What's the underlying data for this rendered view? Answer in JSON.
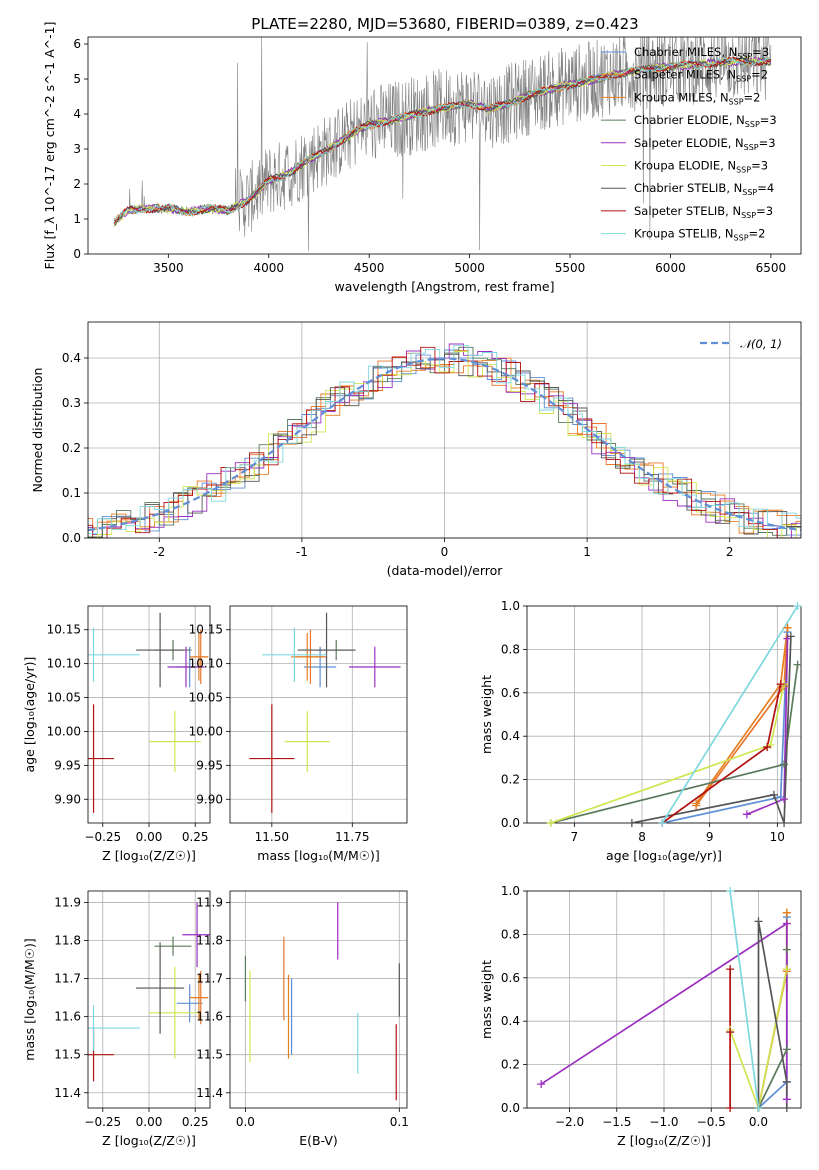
{
  "title": "PLATE=2280, MJD=53680, FIBERID=0389, z=0.423",
  "series": [
    {
      "name": "Chabrier MILES, N$_{SSP}$=3",
      "label": "Chabrier MILES, N",
      "sub": "SSP",
      "n": "=3",
      "color": "#5f8fd6"
    },
    {
      "name": "Salpeter MILES",
      "label": "Salpeter MILES, N",
      "sub": "SSP",
      "n": "=2",
      "color": "#e9772b"
    },
    {
      "name": "Kroupa MILES",
      "label": "Kroupa MILES, N",
      "sub": "SSP",
      "n": "=2",
      "color": "#e67e22"
    },
    {
      "name": "Chabrier ELODIE",
      "label": "Chabrier ELODIE, N",
      "sub": "SSP",
      "n": "=3",
      "color": "#5a7a5a"
    },
    {
      "name": "Salpeter ELODIE",
      "label": "Salpeter ELODIE, N",
      "sub": "SSP",
      "n": "=3",
      "color": "#9b30c0"
    },
    {
      "name": "Kroupa ELODIE",
      "label": "Kroupa ELODIE, N",
      "sub": "SSP",
      "n": "=3",
      "color": "#cfe650"
    },
    {
      "name": "Chabrier STELIB",
      "label": "Chabrier STELIB, N",
      "sub": "SSP",
      "n": "=4",
      "color": "#555555"
    },
    {
      "name": "Salpeter STELIB",
      "label": "Salpeter STELIB, N",
      "sub": "SSP",
      "n": "=3",
      "color": "#b01010"
    },
    {
      "name": "Kroupa STELIB",
      "label": "Kroupa STELIB, N",
      "sub": "SSP",
      "n": "=2",
      "color": "#7fd8e0"
    }
  ],
  "chart_data": [
    {
      "type": "line",
      "id": "spectrum",
      "xlabel": "wavelength [Angstrom, rest frame]",
      "ylabel": "Flux [f_λ 10^-17 erg cm^-2 s^-1 A^-1]",
      "xlim": [
        3100,
        6650
      ],
      "ylim": [
        0,
        6.2
      ],
      "xticks": [
        3500,
        4000,
        4500,
        5000,
        5500,
        6000,
        6500
      ],
      "yticks": [
        0,
        1,
        2,
        3,
        4,
        5,
        6
      ],
      "model_x": [
        3230,
        3300,
        3400,
        3500,
        3600,
        3700,
        3800,
        3900,
        4000,
        4100,
        4200,
        4300,
        4400,
        4500,
        4600,
        4700,
        4800,
        4900,
        5000,
        5100,
        5200,
        5300,
        5400,
        5500,
        5600,
        5700,
        5800,
        5900,
        6000,
        6100,
        6200,
        6300,
        6400,
        6500
      ],
      "model_y": [
        0.9,
        1.25,
        1.3,
        1.3,
        1.2,
        1.3,
        1.25,
        1.55,
        2.1,
        2.3,
        2.7,
        3.0,
        3.4,
        3.7,
        3.8,
        3.95,
        4.1,
        4.2,
        4.3,
        4.15,
        4.3,
        4.55,
        4.7,
        4.85,
        4.95,
        5.1,
        5.2,
        5.3,
        5.35,
        5.4,
        5.45,
        5.5,
        5.5,
        5.5
      ],
      "legend": "top-right"
    },
    {
      "type": "bar",
      "id": "residuals",
      "xlabel": "(data-model)/error",
      "ylabel": "Normed distribution",
      "xlim": [
        -2.5,
        2.5
      ],
      "ylim": [
        0,
        0.48
      ],
      "xticks": [
        -2,
        -1,
        0,
        1,
        2
      ],
      "yticks": [
        0.0,
        0.1,
        0.2,
        0.3,
        0.4
      ],
      "normal_label": "𝒩(0, 1)",
      "legend": "top-right"
    },
    {
      "type": "scatter",
      "id": "age-vs-Z",
      "xlabel": "Z [log₁₀(Z/Z☉)]",
      "ylabel": "age  [log₁₀(age/yr)]",
      "xlim": [
        -0.33,
        0.33
      ],
      "ylim": [
        9.865,
        10.185
      ],
      "xticks": [
        -0.25,
        0.0,
        0.25
      ],
      "xticklabels": [
        "−0.25",
        "0.00",
        "0.25"
      ],
      "yticks": [
        9.9,
        9.95,
        10.0,
        10.05,
        10.1,
        10.15
      ],
      "yticklabels": [
        "9.90",
        "9.95",
        "10.00",
        "10.05",
        "10.10",
        "10.15"
      ],
      "points": [
        {
          "s": 0,
          "x": 0.22,
          "y": 10.095,
          "ex": 0.07,
          "ey": 0.03
        },
        {
          "s": 1,
          "x": 0.28,
          "y": 10.11,
          "ex": 0.04,
          "ey": 0.04
        },
        {
          "s": 2,
          "x": 0.27,
          "y": 10.11,
          "ex": 0.05,
          "ey": 0.035
        },
        {
          "s": 3,
          "x": 0.13,
          "y": 10.12,
          "ex": 0.1,
          "ey": 0.015
        },
        {
          "s": 4,
          "x": 0.2,
          "y": 10.095,
          "ex": 0.1,
          "ey": 0.03
        },
        {
          "s": 5,
          "x": 0.14,
          "y": 9.985,
          "ex": 0.14,
          "ey": 0.045
        },
        {
          "s": 6,
          "x": 0.06,
          "y": 10.12,
          "ex": 0.13,
          "ey": 0.055
        },
        {
          "s": 7,
          "x": -0.3,
          "y": 9.96,
          "ex": 0.11,
          "ey": 0.08
        },
        {
          "s": 8,
          "x": -0.3,
          "y": 10.113,
          "ex": 0.25,
          "ey": 0.04
        }
      ]
    },
    {
      "type": "scatter",
      "id": "age-vs-mass",
      "xlabel": "mass [log₁₀(M/M☉)]",
      "ylabel": "",
      "xlim": [
        11.37,
        11.92
      ],
      "ylim": [
        9.865,
        10.185
      ],
      "xticks": [
        11.5,
        11.75
      ],
      "xticklabels": [
        "11.50",
        "11.75"
      ],
      "yticks": [
        9.9,
        9.95,
        10.0,
        10.05,
        10.1,
        10.15
      ],
      "yticklabels": [
        "9.90",
        "9.95",
        "10.00",
        "10.05",
        "10.10",
        "10.15"
      ],
      "points": [
        {
          "s": 0,
          "x": 11.65,
          "y": 10.095,
          "ex": 0.05,
          "ey": 0.03
        },
        {
          "s": 1,
          "x": 11.62,
          "y": 10.11,
          "ex": 0.05,
          "ey": 0.04
        },
        {
          "s": 2,
          "x": 11.61,
          "y": 10.11,
          "ex": 0.05,
          "ey": 0.035
        },
        {
          "s": 3,
          "x": 11.7,
          "y": 10.12,
          "ex": 0.06,
          "ey": 0.015
        },
        {
          "s": 4,
          "x": 11.82,
          "y": 10.095,
          "ex": 0.08,
          "ey": 0.03
        },
        {
          "s": 5,
          "x": 11.61,
          "y": 9.985,
          "ex": 0.07,
          "ey": 0.045
        },
        {
          "s": 6,
          "x": 11.67,
          "y": 10.12,
          "ex": 0.09,
          "ey": 0.055
        },
        {
          "s": 7,
          "x": 11.5,
          "y": 9.96,
          "ex": 0.07,
          "ey": 0.08
        },
        {
          "s": 8,
          "x": 11.57,
          "y": 10.113,
          "ex": 0.1,
          "ey": 0.04
        }
      ]
    },
    {
      "type": "line",
      "id": "massweight-vs-age",
      "xlabel": "age  [log₁₀(age/yr)]",
      "ylabel": "mass weight",
      "xlim": [
        6.3,
        10.35
      ],
      "ylim": [
        0,
        1
      ],
      "xticks": [
        7,
        8,
        9,
        10
      ],
      "yticks": [
        0.0,
        0.2,
        0.4,
        0.6,
        0.8,
        1.0
      ],
      "series_points": [
        {
          "s": 0,
          "x": [
            8.3,
            10.05,
            10.15
          ],
          "y": [
            0,
            0.12,
            0.88
          ]
        },
        {
          "s": 1,
          "x": [
            8.8,
            10.1,
            10.15
          ],
          "y": [
            0.08,
            0.63,
            0.9
          ]
        },
        {
          "s": 2,
          "x": [
            8.8,
            10.05,
            10.15
          ],
          "y": [
            0.09,
            0.64,
            0.9
          ]
        },
        {
          "s": 3,
          "x": [
            6.65,
            10.1,
            10.3
          ],
          "y": [
            0,
            0.27,
            0.73
          ]
        },
        {
          "s": 4,
          "x": [
            9.55,
            10.1,
            10.15
          ],
          "y": [
            0.04,
            0.11,
            0.85
          ]
        },
        {
          "s": 5,
          "x": [
            6.65,
            9.9,
            10.1
          ],
          "y": [
            0,
            0.36,
            0.64
          ]
        },
        {
          "s": 6,
          "x": [
            7.85,
            9.95,
            10.1,
            10.2
          ],
          "y": [
            0,
            0.13,
            0.0,
            0.86
          ]
        },
        {
          "s": 7,
          "x": [
            8.3,
            9.85,
            10.05
          ],
          "y": [
            0,
            0.35,
            0.64
          ]
        },
        {
          "s": 8,
          "x": [
            8.3,
            10.3
          ],
          "y": [
            0,
            1.0
          ]
        }
      ]
    },
    {
      "type": "scatter",
      "id": "mass-vs-Z",
      "xlabel": "Z [log₁₀(Z/Z☉)]",
      "ylabel": "mass [log₁₀(M/M☉)]",
      "xlim": [
        -0.33,
        0.33
      ],
      "ylim": [
        11.36,
        11.93
      ],
      "xticks": [
        -0.25,
        0.0,
        0.25
      ],
      "xticklabels": [
        "−0.25",
        "0.00",
        "0.25"
      ],
      "yticks": [
        11.4,
        11.5,
        11.6,
        11.7,
        11.8,
        11.9
      ],
      "yticklabels": [
        "11.4",
        "11.5",
        "11.6",
        "11.7",
        "11.8",
        "11.9"
      ],
      "points": [
        {
          "s": 0,
          "x": 0.22,
          "y": 11.635,
          "ex": 0.07,
          "ey": 0.05
        },
        {
          "s": 1,
          "x": 0.28,
          "y": 11.65,
          "ex": 0.04,
          "ey": 0.07
        },
        {
          "s": 2,
          "x": 0.27,
          "y": 11.65,
          "ex": 0.05,
          "ey": 0.06
        },
        {
          "s": 3,
          "x": 0.13,
          "y": 11.785,
          "ex": 0.1,
          "ey": 0.025
        },
        {
          "s": 4,
          "x": 0.26,
          "y": 11.815,
          "ex": 0.08,
          "ey": 0.085
        },
        {
          "s": 5,
          "x": 0.14,
          "y": 11.61,
          "ex": 0.14,
          "ey": 0.12
        },
        {
          "s": 6,
          "x": 0.06,
          "y": 11.675,
          "ex": 0.13,
          "ey": 0.12
        },
        {
          "s": 7,
          "x": -0.3,
          "y": 11.5,
          "ex": 0.11,
          "ey": 0.07
        },
        {
          "s": 8,
          "x": -0.3,
          "y": 11.57,
          "ex": 0.25,
          "ey": 0.06
        }
      ]
    },
    {
      "type": "scatter",
      "id": "mass-vs-EBV",
      "xlabel": "E(B-V)",
      "ylabel": "",
      "xlim": [
        -0.01,
        0.105
      ],
      "ylim": [
        11.36,
        11.93
      ],
      "xticks": [
        0.0,
        0.1
      ],
      "xticklabels": [
        "0.0",
        "0.1"
      ],
      "yticks": [
        11.4,
        11.5,
        11.6,
        11.7,
        11.8,
        11.9
      ],
      "yticklabels": [
        "11.4",
        "11.5",
        "11.6",
        "11.7",
        "11.8",
        "11.9"
      ],
      "points": [
        {
          "s": 0,
          "x": 0.03,
          "y": 11.6,
          "ex": 0,
          "ey": 0.1
        },
        {
          "s": 1,
          "x": 0.025,
          "y": 11.7,
          "ex": 0,
          "ey": 0.11
        },
        {
          "s": 2,
          "x": 0.028,
          "y": 11.6,
          "ex": 0,
          "ey": 0.11
        },
        {
          "s": 3,
          "x": 0.0,
          "y": 11.7,
          "ex": 0,
          "ey": 0.06
        },
        {
          "s": 4,
          "x": 0.06,
          "y": 11.825,
          "ex": 0,
          "ey": 0.075
        },
        {
          "s": 5,
          "x": 0.003,
          "y": 11.6,
          "ex": 0,
          "ey": 0.12
        },
        {
          "s": 6,
          "x": 0.1,
          "y": 11.67,
          "ex": 0,
          "ey": 0.07
        },
        {
          "s": 7,
          "x": 0.098,
          "y": 11.48,
          "ex": 0,
          "ey": 0.1
        },
        {
          "s": 8,
          "x": 0.073,
          "y": 11.53,
          "ex": 0,
          "ey": 0.08
        }
      ]
    },
    {
      "type": "line",
      "id": "massweight-vs-Z",
      "xlabel": "Z [log₁₀(Z/Z☉)]",
      "ylabel": "mass weight",
      "xlim": [
        -2.45,
        0.45
      ],
      "ylim": [
        0,
        1
      ],
      "xticks": [
        -2.0,
        -1.5,
        -1.0,
        -0.5,
        0.0
      ],
      "xticklabels": [
        "−2.0",
        "−1.5",
        "−1.0",
        "−0.5",
        "0.0"
      ],
      "yticks": [
        0.0,
        0.2,
        0.4,
        0.6,
        0.8,
        1.0
      ],
      "series_points": [
        {
          "s": 0,
          "x": [
            0.0,
            0.3,
            0.3
          ],
          "y": [
            0,
            0.12,
            0.88
          ]
        },
        {
          "s": 1,
          "x": [
            0.0,
            0.3,
            0.3
          ],
          "y": [
            0,
            0.63,
            0.9
          ]
        },
        {
          "s": 2,
          "x": [
            0.0,
            0.3,
            0.3
          ],
          "y": [
            0,
            0.64,
            0.9
          ]
        },
        {
          "s": 3,
          "x": [
            0.0,
            0.3,
            0.3
          ],
          "y": [
            0,
            0.27,
            0.73
          ]
        },
        {
          "s": 4,
          "x": [
            -2.3,
            0.3,
            0.3
          ],
          "y": [
            0.11,
            0.85,
            0.04
          ]
        },
        {
          "s": 5,
          "x": [
            -0.3,
            0.0,
            0.3
          ],
          "y": [
            0.36,
            0,
            0.64
          ]
        },
        {
          "s": 6,
          "x": [
            0.0,
            0.0,
            0.3,
            0.3
          ],
          "y": [
            0,
            0.86,
            0.12,
            0.0
          ]
        },
        {
          "s": 7,
          "x": [
            -0.3,
            -0.3,
            -0.3
          ],
          "y": [
            0,
            0.35,
            0.64
          ]
        },
        {
          "s": 8,
          "x": [
            -0.3,
            0.0
          ],
          "y": [
            1.0,
            0
          ]
        }
      ]
    }
  ]
}
